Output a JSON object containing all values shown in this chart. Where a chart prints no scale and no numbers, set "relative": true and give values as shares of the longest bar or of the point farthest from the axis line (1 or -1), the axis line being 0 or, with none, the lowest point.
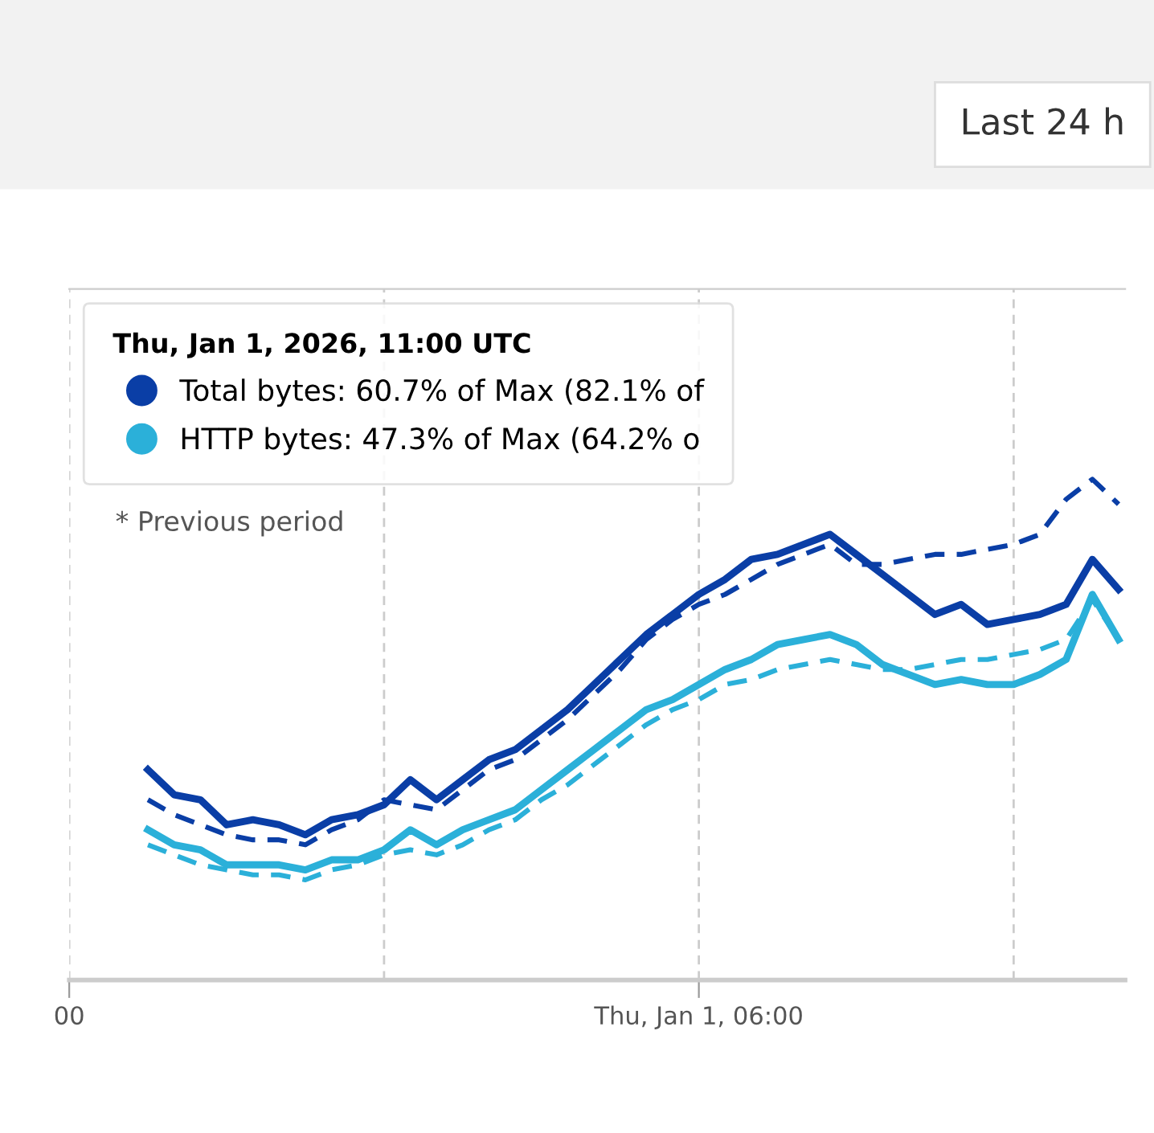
{
  "chart_data": {
    "type": "line",
    "relative": true,
    "categories": [
      "00",
      null,
      null,
      null,
      null,
      null,
      null,
      null,
      null,
      null,
      null,
      null,
      null,
      null,
      null,
      null,
      null,
      null,
      null,
      null,
      null,
      null,
      null,
      null,
      "Thu, Jan 1, 06:00",
      null,
      null,
      null,
      null,
      null,
      null,
      null,
      null,
      null,
      null,
      null,
      null,
      null,
      null,
      null,
      null
    ],
    "grid": "x",
    "series": [
      {
        "color": "#0a3ea6",
        "line_style": "dashed",
        "values": [
          null,
          null,
          null,
          0.36,
          0.33,
          0.31,
          0.29,
          0.28,
          0.28,
          0.27,
          0.3,
          0.32,
          0.36,
          0.35,
          0.34,
          0.38,
          0.42,
          0.44,
          0.48,
          0.52,
          0.57,
          0.62,
          0.68,
          0.72,
          0.75,
          0.77,
          0.8,
          0.83,
          0.85,
          0.87,
          0.83,
          0.83,
          0.84,
          0.85,
          0.85,
          0.86,
          0.87,
          0.89,
          0.96,
          1,
          0.95
        ]
      },
      {
        "color": "#2bb0d9",
        "line_style": "dashed",
        "values": [
          null,
          null,
          null,
          0.27,
          0.25,
          0.23,
          0.22,
          0.21,
          0.21,
          0.2,
          0.22,
          0.23,
          0.25,
          0.26,
          0.25,
          0.27,
          0.3,
          0.32,
          0.36,
          0.39,
          0.43,
          0.47,
          0.51,
          0.54,
          0.56,
          0.59,
          0.6,
          0.62,
          0.63,
          0.64,
          0.63,
          0.62,
          0.62,
          0.63,
          0.64,
          0.64,
          0.65,
          0.66,
          0.68,
          0.76,
          0.68
        ]
      },
      {
        "name": "Total bytes: 60.7% of Max (82.1% of",
        "color": "#0a3ea6",
        "line_style": "solid",
        "values": [
          null,
          null,
          null,
          0.42,
          0.37,
          0.36,
          0.31,
          0.32,
          0.31,
          0.29,
          0.32,
          0.33,
          0.35,
          0.4,
          0.36,
          0.4,
          0.44,
          0.46,
          0.5,
          0.54,
          0.59,
          0.64,
          0.69,
          0.73,
          0.77,
          0.8,
          0.84,
          0.85,
          0.87,
          0.89,
          0.85,
          0.81,
          0.77,
          0.73,
          0.75,
          0.71,
          0.72,
          0.73,
          0.75,
          0.84,
          0.78
        ]
      },
      {
        "name": "HTTP bytes: 47.3% of Max (64.2% o",
        "color": "#2bb0d9",
        "line_style": "solid",
        "values": [
          null,
          null,
          null,
          0.3,
          0.27,
          0.26,
          0.23,
          0.23,
          0.23,
          0.22,
          0.24,
          0.24,
          0.26,
          0.3,
          0.27,
          0.3,
          0.32,
          0.34,
          0.38,
          0.42,
          0.46,
          0.5,
          0.54,
          0.56,
          0.59,
          0.62,
          0.64,
          0.67,
          0.68,
          0.69,
          0.67,
          0.63,
          0.61,
          0.59,
          0.6,
          0.59,
          0.59,
          0.61,
          0.64,
          0.77,
          0.68
        ]
      }
    ],
    "legend": "top left",
    "legend_title": "Thu, Jan 1, 2026, 11:00 UTC",
    "marker": "none",
    "annotations": [
      "* Previous period",
      "Last 24 h"
    ]
  }
}
